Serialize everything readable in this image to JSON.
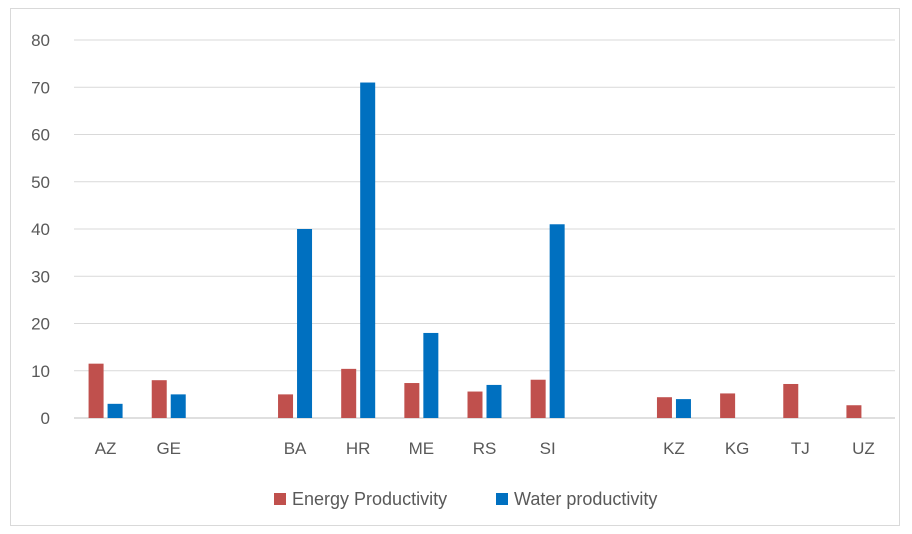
{
  "chart_data": {
    "type": "bar",
    "categories": [
      "AZ",
      "GE",
      "",
      "BA",
      "HR",
      "ME",
      "RS",
      "SI",
      "",
      "KZ",
      "KG",
      "TJ",
      "UZ"
    ],
    "series": [
      {
        "name": "Energy Productivity",
        "color": "#c0504d",
        "values": [
          11.5,
          8.0,
          null,
          5.0,
          10.4,
          7.4,
          5.6,
          8.1,
          null,
          4.4,
          5.2,
          7.2,
          2.7
        ]
      },
      {
        "name": "Water productivity",
        "color": "#0070c0",
        "values": [
          3.0,
          5.0,
          null,
          40.0,
          71.0,
          18.0,
          7.0,
          41.0,
          null,
          4.0,
          null,
          null,
          null
        ]
      }
    ],
    "yticks": [
      "0",
      "10",
      "20",
      "30",
      "40",
      "50",
      "60",
      "70",
      "80"
    ],
    "ylim": [
      0,
      80
    ],
    "grid": true,
    "legend_position": "bottom"
  }
}
